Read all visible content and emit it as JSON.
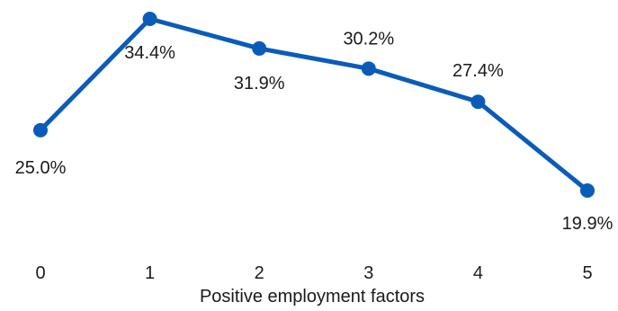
{
  "chart_data": {
    "type": "line",
    "title": "",
    "xlabel": "Positive employment factors",
    "ylabel": "",
    "x": [
      0,
      1,
      2,
      3,
      4,
      5
    ],
    "x_tick_labels": [
      "0",
      "1",
      "2",
      "3",
      "4",
      "5"
    ],
    "series": [
      {
        "values": [
          25.0,
          34.4,
          31.9,
          30.2,
          27.4,
          19.9
        ],
        "labels": [
          "25.0%",
          "34.4%",
          "31.9%",
          "30.2%",
          "27.4%",
          "19.9%"
        ],
        "color": "#0a5cb8"
      }
    ],
    "ylim": [
      19.9,
      34.4
    ],
    "grid": false,
    "legend": "none",
    "marker": "circle"
  }
}
